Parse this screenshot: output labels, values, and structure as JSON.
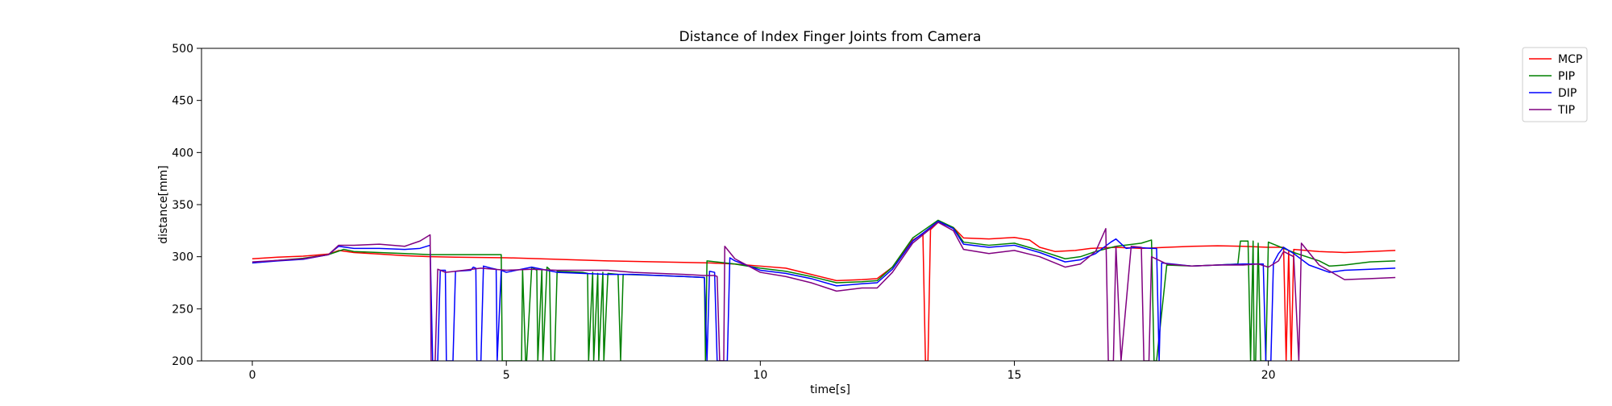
{
  "chart_data": {
    "type": "line",
    "title": "Distance of Index Finger Joints from Camera",
    "xlabel": "time[s]",
    "ylabel": "distance[mm]",
    "xlim": [
      -1,
      23.75
    ],
    "ylim": [
      200,
      500
    ],
    "xticks": [
      0,
      5,
      10,
      15,
      20
    ],
    "yticks": [
      200,
      250,
      300,
      350,
      400,
      450,
      500
    ],
    "grid": false,
    "legend_position": "outside-top-right",
    "series": [
      {
        "name": "MCP",
        "color": "#ff0000",
        "points": [
          [
            0,
            298
          ],
          [
            0.5,
            299.5
          ],
          [
            1.0,
            300.5
          ],
          [
            1.5,
            302.5
          ],
          [
            1.7,
            306
          ],
          [
            2.0,
            304
          ],
          [
            2.5,
            302.5
          ],
          [
            3.0,
            301
          ],
          [
            3.5,
            300
          ],
          [
            4.0,
            299.5
          ],
          [
            5.0,
            299
          ],
          [
            6.0,
            297.5
          ],
          [
            7.0,
            296
          ],
          [
            8.0,
            295
          ],
          [
            9.0,
            294
          ],
          [
            9.5,
            293
          ],
          [
            10.0,
            291
          ],
          [
            10.5,
            289
          ],
          [
            11.0,
            283
          ],
          [
            11.5,
            277
          ],
          [
            12.0,
            278
          ],
          [
            12.3,
            279
          ],
          [
            12.6,
            290
          ],
          [
            13.0,
            316
          ],
          [
            13.2,
            322
          ],
          [
            13.25,
            200
          ],
          [
            13.3,
            200
          ],
          [
            13.35,
            326
          ],
          [
            13.5,
            333
          ],
          [
            13.8,
            328
          ],
          [
            14.0,
            318
          ],
          [
            14.5,
            317
          ],
          [
            15.0,
            318.5
          ],
          [
            15.3,
            316
          ],
          [
            15.5,
            309
          ],
          [
            15.8,
            305
          ],
          [
            16.2,
            306
          ],
          [
            16.5,
            308
          ],
          [
            17.0,
            309
          ],
          [
            17.5,
            308
          ],
          [
            18.0,
            309
          ],
          [
            18.5,
            310
          ],
          [
            19.0,
            310.5
          ],
          [
            19.5,
            310
          ],
          [
            20.0,
            309
          ],
          [
            20.3,
            309
          ],
          [
            20.35,
            200
          ],
          [
            20.4,
            305
          ],
          [
            20.45,
            200
          ],
          [
            20.5,
            307
          ],
          [
            21.0,
            305
          ],
          [
            21.5,
            304
          ],
          [
            22.0,
            305
          ],
          [
            22.5,
            306
          ]
        ]
      },
      {
        "name": "PIP",
        "color": "#008000",
        "points": [
          [
            0,
            294
          ],
          [
            0.5,
            296.5
          ],
          [
            1.0,
            298.5
          ],
          [
            1.5,
            302
          ],
          [
            1.8,
            307
          ],
          [
            2.0,
            305
          ],
          [
            2.5,
            304
          ],
          [
            3.0,
            303
          ],
          [
            3.5,
            302
          ],
          [
            4.0,
            302
          ],
          [
            4.5,
            302
          ],
          [
            4.8,
            302
          ],
          [
            4.9,
            302
          ],
          [
            4.92,
            200
          ],
          [
            4.95,
            200
          ],
          [
            5.3,
            200
          ],
          [
            5.32,
            288
          ],
          [
            5.38,
            200
          ],
          [
            5.4,
            200
          ],
          [
            5.5,
            290
          ],
          [
            5.6,
            287
          ],
          [
            5.62,
            200
          ],
          [
            5.7,
            288
          ],
          [
            5.72,
            200
          ],
          [
            5.8,
            290
          ],
          [
            5.85,
            288
          ],
          [
            5.88,
            200
          ],
          [
            5.95,
            200
          ],
          [
            6.0,
            286
          ],
          [
            6.5,
            285
          ],
          [
            6.6,
            284
          ],
          [
            6.62,
            200
          ],
          [
            6.7,
            285
          ],
          [
            6.72,
            200
          ],
          [
            6.8,
            284
          ],
          [
            6.82,
            200
          ],
          [
            6.9,
            285
          ],
          [
            6.92,
            200
          ],
          [
            7.0,
            284
          ],
          [
            7.2,
            283
          ],
          [
            7.25,
            200
          ],
          [
            7.3,
            283
          ],
          [
            8.0,
            282
          ],
          [
            8.5,
            281
          ],
          [
            8.9,
            280
          ],
          [
            8.92,
            200
          ],
          [
            8.95,
            296
          ],
          [
            9.5,
            293
          ],
          [
            10.0,
            289
          ],
          [
            10.5,
            286
          ],
          [
            11.0,
            281
          ],
          [
            11.5,
            275
          ],
          [
            12.0,
            276
          ],
          [
            12.3,
            277
          ],
          [
            12.6,
            290
          ],
          [
            13.0,
            318
          ],
          [
            13.5,
            335
          ],
          [
            13.8,
            328
          ],
          [
            14.0,
            314
          ],
          [
            14.5,
            311
          ],
          [
            15.0,
            313
          ],
          [
            15.5,
            306
          ],
          [
            16.0,
            298
          ],
          [
            16.3,
            300
          ],
          [
            16.6,
            305
          ],
          [
            17.0,
            310
          ],
          [
            17.5,
            313
          ],
          [
            17.7,
            316
          ],
          [
            17.75,
            200
          ],
          [
            17.8,
            200
          ],
          [
            18.0,
            292
          ],
          [
            18.5,
            291
          ],
          [
            19.0,
            292
          ],
          [
            19.4,
            293
          ],
          [
            19.45,
            315
          ],
          [
            19.6,
            315
          ],
          [
            19.65,
            200
          ],
          [
            19.7,
            315
          ],
          [
            19.72,
            200
          ],
          [
            19.75,
            200
          ],
          [
            19.8,
            313
          ],
          [
            19.85,
            200
          ],
          [
            19.95,
            200
          ],
          [
            20.0,
            314
          ],
          [
            20.2,
            310
          ],
          [
            20.5,
            304
          ],
          [
            21.0,
            296
          ],
          [
            21.2,
            291
          ],
          [
            21.5,
            292
          ],
          [
            22.0,
            295
          ],
          [
            22.5,
            296
          ]
        ]
      },
      {
        "name": "DIP",
        "color": "#0000ff",
        "points": [
          [
            0,
            294
          ],
          [
            0.5,
            296
          ],
          [
            1.0,
            297.5
          ],
          [
            1.5,
            302
          ],
          [
            1.7,
            310
          ],
          [
            2.0,
            308
          ],
          [
            2.5,
            308
          ],
          [
            3.0,
            307
          ],
          [
            3.3,
            308
          ],
          [
            3.5,
            311
          ],
          [
            3.55,
            200
          ],
          [
            3.65,
            200
          ],
          [
            3.7,
            287
          ],
          [
            3.8,
            287
          ],
          [
            3.82,
            200
          ],
          [
            3.95,
            200
          ],
          [
            4.0,
            286
          ],
          [
            4.3,
            287
          ],
          [
            4.35,
            290
          ],
          [
            4.4,
            289
          ],
          [
            4.42,
            200
          ],
          [
            4.5,
            200
          ],
          [
            4.55,
            291
          ],
          [
            4.7,
            289
          ],
          [
            4.8,
            288
          ],
          [
            4.82,
            200
          ],
          [
            4.9,
            287
          ],
          [
            5.0,
            285
          ],
          [
            5.5,
            290
          ],
          [
            6.0,
            285
          ],
          [
            6.5,
            284
          ],
          [
            7.0,
            283
          ],
          [
            7.5,
            283
          ],
          [
            8.0,
            282
          ],
          [
            8.5,
            281
          ],
          [
            8.9,
            280
          ],
          [
            8.95,
            200
          ],
          [
            9.0,
            286
          ],
          [
            9.1,
            285
          ],
          [
            9.15,
            200
          ],
          [
            9.35,
            200
          ],
          [
            9.4,
            299
          ],
          [
            9.5,
            296
          ],
          [
            10.0,
            287
          ],
          [
            10.5,
            284
          ],
          [
            11.0,
            279
          ],
          [
            11.5,
            272
          ],
          [
            12.0,
            274
          ],
          [
            12.3,
            275
          ],
          [
            12.6,
            288
          ],
          [
            13.0,
            315
          ],
          [
            13.5,
            334
          ],
          [
            13.8,
            327
          ],
          [
            14.0,
            312
          ],
          [
            14.5,
            309
          ],
          [
            15.0,
            311
          ],
          [
            15.5,
            304
          ],
          [
            16.0,
            295
          ],
          [
            16.3,
            297
          ],
          [
            16.6,
            303
          ],
          [
            16.9,
            314
          ],
          [
            17.0,
            317
          ],
          [
            17.2,
            308
          ],
          [
            17.4,
            309
          ],
          [
            17.7,
            308
          ],
          [
            17.8,
            308
          ],
          [
            17.85,
            200
          ],
          [
            17.9,
            294
          ],
          [
            18.5,
            291
          ],
          [
            19.0,
            292
          ],
          [
            19.5,
            293
          ],
          [
            19.9,
            293
          ],
          [
            19.95,
            200
          ],
          [
            20.05,
            200
          ],
          [
            20.1,
            294
          ],
          [
            20.2,
            303
          ],
          [
            20.3,
            309
          ],
          [
            20.5,
            303
          ],
          [
            20.8,
            292
          ],
          [
            21.2,
            285
          ],
          [
            21.5,
            287
          ],
          [
            22.0,
            288
          ],
          [
            22.5,
            289
          ]
        ]
      },
      {
        "name": "TIP",
        "color": "#800080",
        "points": [
          [
            0,
            295
          ],
          [
            0.5,
            296.5
          ],
          [
            1.0,
            298
          ],
          [
            1.5,
            302
          ],
          [
            1.7,
            311
          ],
          [
            2.0,
            311
          ],
          [
            2.5,
            312
          ],
          [
            3.0,
            310
          ],
          [
            3.3,
            315
          ],
          [
            3.5,
            321
          ],
          [
            3.52,
            200
          ],
          [
            3.6,
            200
          ],
          [
            3.65,
            288
          ],
          [
            3.8,
            285
          ],
          [
            4.0,
            286
          ],
          [
            4.5,
            289
          ],
          [
            5.0,
            287
          ],
          [
            5.5,
            288
          ],
          [
            6.0,
            287
          ],
          [
            6.5,
            287
          ],
          [
            7.0,
            287
          ],
          [
            7.5,
            285
          ],
          [
            8.0,
            284
          ],
          [
            8.5,
            283
          ],
          [
            8.9,
            282
          ],
          [
            9.1,
            282
          ],
          [
            9.15,
            281
          ],
          [
            9.2,
            200
          ],
          [
            9.28,
            200
          ],
          [
            9.3,
            310
          ],
          [
            9.5,
            298
          ],
          [
            10.0,
            285
          ],
          [
            10.5,
            281
          ],
          [
            11.0,
            275
          ],
          [
            11.5,
            267
          ],
          [
            12.0,
            270
          ],
          [
            12.3,
            270
          ],
          [
            12.6,
            285
          ],
          [
            13.0,
            313
          ],
          [
            13.5,
            333
          ],
          [
            13.8,
            325
          ],
          [
            14.0,
            307
          ],
          [
            14.5,
            303
          ],
          [
            15.0,
            306
          ],
          [
            15.5,
            300
          ],
          [
            16.0,
            290
          ],
          [
            16.3,
            293
          ],
          [
            16.6,
            305
          ],
          [
            16.8,
            327
          ],
          [
            16.85,
            200
          ],
          [
            16.95,
            200
          ],
          [
            17.0,
            310
          ],
          [
            17.1,
            200
          ],
          [
            17.3,
            310
          ],
          [
            17.5,
            309
          ],
          [
            17.55,
            200
          ],
          [
            17.65,
            200
          ],
          [
            17.7,
            300
          ],
          [
            18.0,
            293
          ],
          [
            18.5,
            291
          ],
          [
            19.0,
            292
          ],
          [
            19.5,
            292
          ],
          [
            19.8,
            293
          ],
          [
            20.0,
            290
          ],
          [
            20.2,
            296
          ],
          [
            20.3,
            305
          ],
          [
            20.5,
            300
          ],
          [
            20.6,
            200
          ],
          [
            20.65,
            313
          ],
          [
            21.0,
            292
          ],
          [
            21.5,
            278
          ],
          [
            22.0,
            279
          ],
          [
            22.5,
            280
          ]
        ]
      }
    ]
  }
}
